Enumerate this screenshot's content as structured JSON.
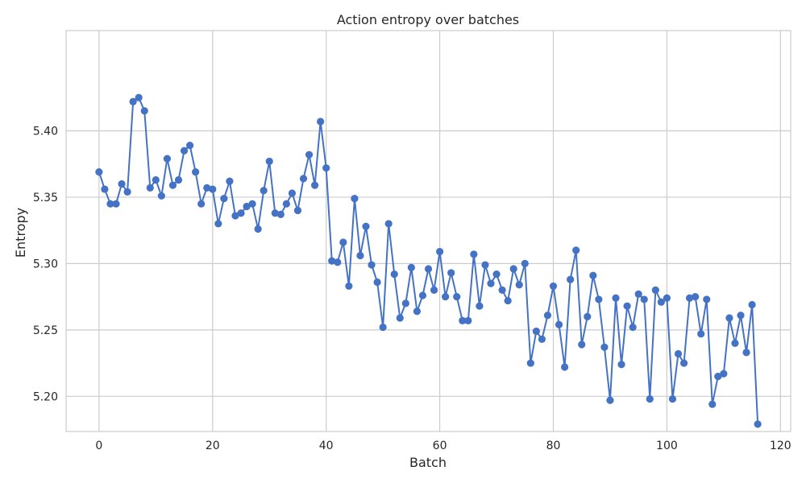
{
  "chart_data": {
    "type": "line",
    "title": "Action entropy over batches",
    "xlabel": "Batch",
    "ylabel": "Entropy",
    "xlim": [
      -5.8,
      121.8
    ],
    "ylim": [
      5.1735,
      5.4755
    ],
    "xticks": [
      0,
      20,
      40,
      60,
      80,
      100,
      120
    ],
    "xtick_labels": [
      "0",
      "20",
      "40",
      "60",
      "80",
      "100",
      "120"
    ],
    "yticks": [
      5.2,
      5.25,
      5.3,
      5.35,
      5.4
    ],
    "ytick_labels": [
      "5.20",
      "5.25",
      "5.30",
      "5.35",
      "5.40"
    ],
    "grid": true,
    "legend": "none",
    "line_color": "#4472c4",
    "marker": "circle",
    "x": [
      0,
      1,
      2,
      3,
      4,
      5,
      6,
      7,
      8,
      9,
      10,
      11,
      12,
      13,
      14,
      15,
      16,
      17,
      18,
      19,
      20,
      21,
      22,
      23,
      24,
      25,
      26,
      27,
      28,
      29,
      30,
      31,
      32,
      33,
      34,
      35,
      36,
      37,
      38,
      39,
      40,
      41,
      42,
      43,
      44,
      45,
      46,
      47,
      48,
      49,
      50,
      51,
      52,
      53,
      54,
      55,
      56,
      57,
      58,
      59,
      60,
      61,
      62,
      63,
      64,
      65,
      66,
      67,
      68,
      69,
      70,
      71,
      72,
      73,
      74,
      75,
      76,
      77,
      78,
      79,
      80,
      81,
      82,
      83,
      84,
      85,
      86,
      87,
      88,
      89,
      90,
      91,
      92,
      93,
      94,
      95,
      96,
      97,
      98,
      99,
      100,
      101,
      102,
      103,
      104,
      105,
      106,
      107,
      108,
      109,
      110,
      111,
      112,
      113,
      114,
      115,
      116
    ],
    "y": [
      5.369,
      5.356,
      5.345,
      5.345,
      5.36,
      5.354,
      5.422,
      5.425,
      5.415,
      5.357,
      5.363,
      5.351,
      5.379,
      5.359,
      5.363,
      5.385,
      5.389,
      5.369,
      5.345,
      5.357,
      5.356,
      5.33,
      5.349,
      5.362,
      5.336,
      5.338,
      5.343,
      5.345,
      5.326,
      5.355,
      5.377,
      5.338,
      5.337,
      5.345,
      5.353,
      5.34,
      5.364,
      5.382,
      5.359,
      5.407,
      5.372,
      5.302,
      5.301,
      5.316,
      5.283,
      5.349,
      5.306,
      5.328,
      5.299,
      5.286,
      5.252,
      5.33,
      5.292,
      5.259,
      5.27,
      5.297,
      5.264,
      5.276,
      5.296,
      5.28,
      5.309,
      5.275,
      5.293,
      5.275,
      5.257,
      5.257,
      5.307,
      5.268,
      5.299,
      5.285,
      5.292,
      5.28,
      5.272,
      5.296,
      5.284,
      5.3,
      5.225,
      5.249,
      5.243,
      5.261,
      5.283,
      5.254,
      5.222,
      5.288,
      5.31,
      5.239,
      5.26,
      5.291,
      5.273,
      5.237,
      5.197,
      5.274,
      5.224,
      5.268,
      5.252,
      5.277,
      5.273,
      5.198,
      5.28,
      5.271,
      5.274,
      5.198,
      5.232,
      5.225,
      5.274,
      5.275,
      5.247,
      5.273,
      5.194,
      5.215,
      5.217,
      5.259,
      5.24,
      5.261,
      5.233,
      5.269,
      5.179
    ]
  }
}
